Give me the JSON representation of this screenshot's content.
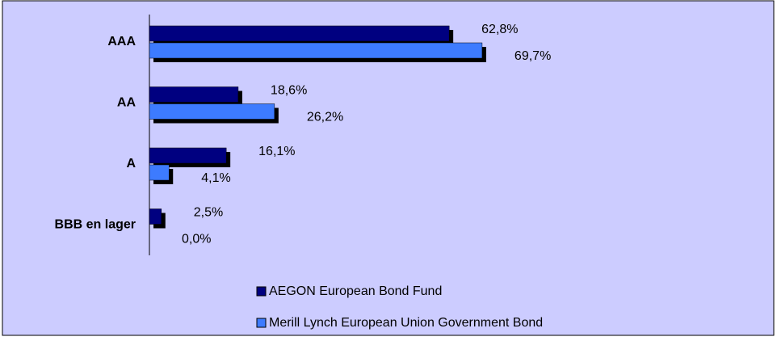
{
  "chart_data": {
    "type": "bar",
    "orientation": "horizontal",
    "categories": [
      "AAA",
      "AA",
      "A",
      "BBB en lager"
    ],
    "series": [
      {
        "name": "AEGON European Bond Fund",
        "color": "#000080",
        "values": [
          62.8,
          18.6,
          16.1,
          2.5
        ],
        "value_labels": [
          "62,8%",
          "18,6%",
          "16,1%",
          "2,5%"
        ]
      },
      {
        "name": "Merill Lynch European Union Government Bond",
        "color": "#3d7bff",
        "values": [
          69.7,
          26.2,
          4.1,
          0.0
        ],
        "value_labels": [
          "69,7%",
          "26,2%",
          "4,1%",
          "0,0%"
        ]
      }
    ],
    "legend": "bottom"
  }
}
